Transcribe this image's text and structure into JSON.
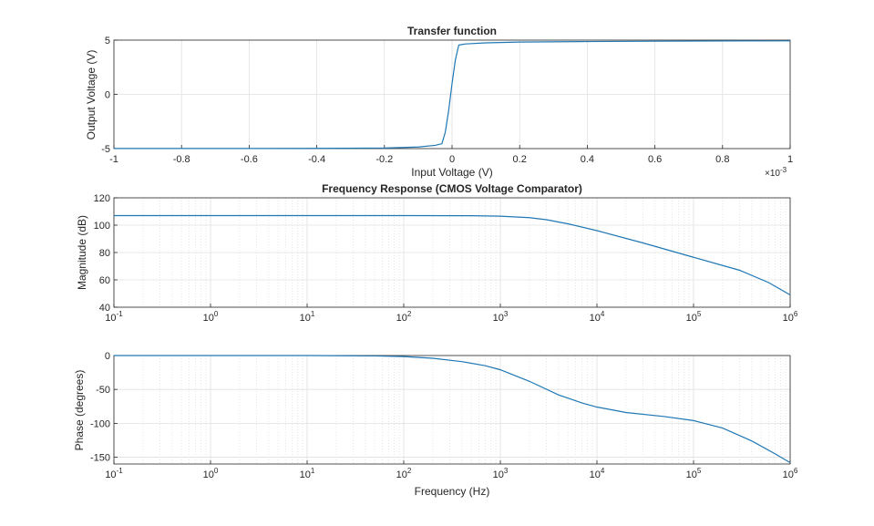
{
  "colors": {
    "line": "#1f77b4",
    "grid": "#e0e0e0",
    "axes": "#262626"
  },
  "chart_data": [
    {
      "type": "line",
      "title": "Transfer function",
      "xlabel": "Input Voltage (V)",
      "ylabel": "Output Voltage (V)",
      "xscale": "linear",
      "xlim": [
        -0.001,
        0.001
      ],
      "ylim": [
        -5,
        5
      ],
      "x_multiplier_label": "×10",
      "x_multiplier_exp": "-3",
      "xticks": [
        -1,
        -0.8,
        -0.6,
        -0.4,
        -0.2,
        0,
        0.2,
        0.4,
        0.6,
        0.8,
        1
      ],
      "xtick_labels": [
        "-1",
        "-0.8",
        "-0.6",
        "-0.4",
        "-0.2",
        "0",
        "0.2",
        "0.4",
        "0.6",
        "0.8",
        "1"
      ],
      "yticks": [
        -5,
        0,
        5
      ],
      "ytick_labels": [
        "-5",
        "0",
        "5"
      ],
      "grid": true,
      "series": [
        {
          "x": [
            -0.001,
            -0.0008,
            -0.0006,
            -0.0004,
            -0.0002,
            -0.0001,
            -5e-05,
            -3e-05,
            -2e-05,
            -1e-05,
            0,
            1e-05,
            2e-05,
            4e-05,
            0.0001,
            0.0002,
            0.0004,
            0.0006,
            0.0008,
            0.001
          ],
          "y": [
            -4.99,
            -4.99,
            -4.99,
            -4.98,
            -4.95,
            -4.85,
            -4.7,
            -4.55,
            -3.5,
            -1.5,
            1.0,
            3.2,
            4.55,
            4.65,
            4.75,
            4.82,
            4.87,
            4.9,
            4.92,
            4.93
          ]
        }
      ]
    },
    {
      "type": "line",
      "title": "Frequency Response (CMOS Voltage Comparator)",
      "xlabel": "",
      "ylabel": "Magnitude (dB)",
      "xscale": "log",
      "xlim": [
        0.1,
        1000000
      ],
      "ylim": [
        40,
        120
      ],
      "xtick_base": [
        "10",
        "10",
        "10",
        "10",
        "10",
        "10",
        "10",
        "10"
      ],
      "xtick_exps": [
        "-1",
        "0",
        "1",
        "2",
        "3",
        "4",
        "5",
        "6"
      ],
      "yticks": [
        40,
        60,
        80,
        100,
        120
      ],
      "ytick_labels": [
        "40",
        "60",
        "80",
        "100",
        "120"
      ],
      "grid": true,
      "series": [
        {
          "x": [
            0.1,
            1,
            10,
            100,
            500,
            1000,
            2000,
            3000,
            5000,
            10000,
            30000,
            100000,
            300000,
            600000,
            1000000
          ],
          "y": [
            107,
            107,
            107,
            107,
            106.9,
            106.6,
            105.5,
            104,
            101,
            96,
            87,
            76.5,
            67,
            58,
            49
          ]
        }
      ]
    },
    {
      "type": "line",
      "title": "",
      "xlabel": "Frequency (Hz)",
      "ylabel": "Phase (degrees)",
      "xscale": "log",
      "xlim": [
        0.1,
        1000000
      ],
      "ylim": [
        -160,
        0
      ],
      "xtick_base": [
        "10",
        "10",
        "10",
        "10",
        "10",
        "10",
        "10",
        "10"
      ],
      "xtick_exps": [
        "-1",
        "0",
        "1",
        "2",
        "3",
        "4",
        "5",
        "6"
      ],
      "yticks": [
        -150,
        -100,
        -50,
        0
      ],
      "ytick_labels": [
        "-150",
        "-100",
        "-50",
        "0"
      ],
      "grid": true,
      "series": [
        {
          "x": [
            0.1,
            1,
            10,
            50,
            100,
            200,
            400,
            700,
            1000,
            2000,
            4000,
            7000,
            10000,
            20000,
            50000,
            100000,
            200000,
            400000,
            700000,
            1000000
          ],
          "y": [
            0,
            0,
            0,
            -0.6,
            -1.5,
            -4,
            -9,
            -15,
            -21,
            -38,
            -58,
            -70,
            -76,
            -84,
            -90,
            -96,
            -107,
            -126,
            -145,
            -158
          ]
        }
      ]
    }
  ]
}
